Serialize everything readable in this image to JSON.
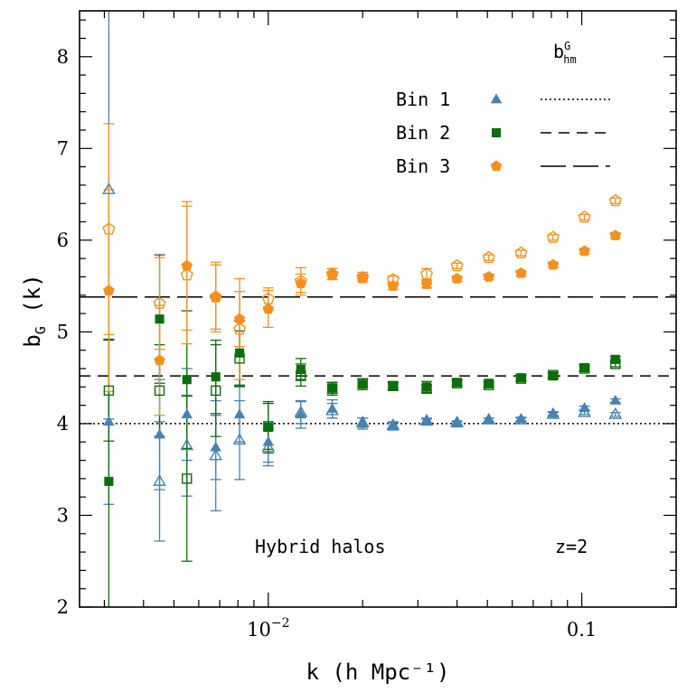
{
  "chart_data": {
    "type": "scatter",
    "xscale": "log",
    "xlim": [
      0.0025,
      0.2
    ],
    "ylim": [
      2,
      8.5
    ],
    "xlabel": "k (h Mpc⁻¹)",
    "ylabel": {
      "main": "b",
      "sub": "G",
      "tail": " (k)"
    },
    "x_tick_labels": [
      {
        "x": 0.01,
        "base": "10",
        "exp": "−2"
      },
      {
        "x": 0.1,
        "base": "0.1",
        "exp": ""
      }
    ],
    "y_ticks": [
      2,
      3,
      4,
      5,
      6,
      7,
      8
    ],
    "annotations": {
      "left": "Hybrid halos",
      "right": "z=2"
    },
    "legend": {
      "position": "top-right",
      "header": {
        "main": "b",
        "sup": "G",
        "sub": "hm"
      },
      "entries": [
        {
          "label": "Bin 1",
          "marker": "triangle",
          "line": "dotted"
        },
        {
          "label": "Bin 2",
          "marker": "square",
          "line": "dashed"
        },
        {
          "label": "Bin 3",
          "marker": "pentagon",
          "line": "long-dashed"
        }
      ]
    },
    "reference_lines": [
      {
        "series": "Bin 1",
        "y": 4.0,
        "style": "dotted"
      },
      {
        "series": "Bin 2",
        "y": 4.52,
        "style": "dashed"
      },
      {
        "series": "Bin 3",
        "y": 5.38,
        "style": "long-dashed"
      }
    ],
    "series": [
      {
        "name": "Bin 1",
        "color": "#4682b4",
        "marker": "triangle",
        "filled": [
          {
            "x": 0.0031,
            "y": 4.02,
            "err": 0.9
          },
          {
            "x": 0.0045,
            "y": 3.88,
            "err": 0.6
          },
          {
            "x": 0.0055,
            "y": 4.1,
            "err": 0.5
          },
          {
            "x": 0.0068,
            "y": 3.74,
            "err": 0.35
          },
          {
            "x": 0.0081,
            "y": 4.1,
            "err": 0.3
          },
          {
            "x": 0.01,
            "y": 3.8,
            "err": 0.22
          },
          {
            "x": 0.0127,
            "y": 4.1,
            "err": 0.15
          },
          {
            "x": 0.016,
            "y": 4.16,
            "err": 0.1
          },
          {
            "x": 0.02,
            "y": 4.0,
            "err": 0.06
          },
          {
            "x": 0.025,
            "y": 3.97,
            "err": 0.04
          },
          {
            "x": 0.032,
            "y": 4.02,
            "err": 0.03
          },
          {
            "x": 0.04,
            "y": 4.0,
            "err": 0.02
          },
          {
            "x": 0.0505,
            "y": 4.04,
            "err": 0.02
          },
          {
            "x": 0.064,
            "y": 4.05,
            "err": 0.02
          },
          {
            "x": 0.081,
            "y": 4.11,
            "err": 0.02
          },
          {
            "x": 0.102,
            "y": 4.17,
            "err": 0.02
          },
          {
            "x": 0.128,
            "y": 4.25,
            "err": 0.02
          }
        ],
        "open": [
          {
            "x": 0.0031,
            "y": 6.55,
            "err": 2.5
          },
          {
            "x": 0.0045,
            "y": 3.37,
            "err": 0.65
          },
          {
            "x": 0.0055,
            "y": 3.76,
            "err": 0.55
          },
          {
            "x": 0.0068,
            "y": 3.65,
            "err": 0.6
          },
          {
            "x": 0.0081,
            "y": 3.82,
            "err": 0.43
          },
          {
            "x": 0.01,
            "y": 3.74,
            "err": 0.2
          },
          {
            "x": 0.0127,
            "y": 4.12,
            "err": 0.12
          },
          {
            "x": 0.016,
            "y": 4.14,
            "err": 0.08
          },
          {
            "x": 0.02,
            "y": 4.01,
            "err": 0.05
          },
          {
            "x": 0.025,
            "y": 3.98,
            "err": 0.04
          },
          {
            "x": 0.032,
            "y": 4.03,
            "err": 0.03
          },
          {
            "x": 0.04,
            "y": 4.01,
            "err": 0.02
          },
          {
            "x": 0.0505,
            "y": 4.04,
            "err": 0.02
          },
          {
            "x": 0.064,
            "y": 4.04,
            "err": 0.02
          },
          {
            "x": 0.081,
            "y": 4.1,
            "err": 0.02
          },
          {
            "x": 0.102,
            "y": 4.12,
            "err": 0.02
          },
          {
            "x": 0.128,
            "y": 4.1,
            "err": 0.02
          }
        ]
      },
      {
        "name": "Bin 2",
        "color": "#0a6e0a",
        "marker": "square",
        "filled": [
          {
            "x": 0.0031,
            "y": 3.37,
            "err": 1.55
          },
          {
            "x": 0.0045,
            "y": 5.14,
            "err": 0.7
          },
          {
            "x": 0.0055,
            "y": 4.48,
            "err": 0.75
          },
          {
            "x": 0.0068,
            "y": 4.51,
            "err": 0.4
          },
          {
            "x": 0.0081,
            "y": 4.77,
            "err": 0.35
          },
          {
            "x": 0.01,
            "y": 3.96,
            "err": 0.28
          },
          {
            "x": 0.0127,
            "y": 4.59,
            "err": 0.12
          },
          {
            "x": 0.016,
            "y": 4.39,
            "err": 0.06
          },
          {
            "x": 0.02,
            "y": 4.43,
            "err": 0.06
          },
          {
            "x": 0.025,
            "y": 4.41,
            "err": 0.04
          },
          {
            "x": 0.032,
            "y": 4.4,
            "err": 0.06
          },
          {
            "x": 0.04,
            "y": 4.45,
            "err": 0.04
          },
          {
            "x": 0.0505,
            "y": 4.44,
            "err": 0.03
          },
          {
            "x": 0.064,
            "y": 4.5,
            "err": 0.03
          },
          {
            "x": 0.081,
            "y": 4.52,
            "err": 0.03
          },
          {
            "x": 0.102,
            "y": 4.61,
            "err": 0.03
          },
          {
            "x": 0.128,
            "y": 4.7,
            "err": 0.03
          }
        ],
        "open": [
          {
            "x": 0.0031,
            "y": 4.36,
            "err": 0.55
          },
          {
            "x": 0.0045,
            "y": 4.36,
            "err": 0.5
          },
          {
            "x": 0.0055,
            "y": 3.4,
            "err": 0.9
          },
          {
            "x": 0.0068,
            "y": 4.36,
            "err": 0.5
          },
          {
            "x": 0.0081,
            "y": 4.71,
            "err": 0.3
          },
          {
            "x": 0.01,
            "y": 3.97,
            "err": 0.25
          },
          {
            "x": 0.0127,
            "y": 4.53,
            "err": 0.12
          },
          {
            "x": 0.016,
            "y": 4.38,
            "err": 0.07
          },
          {
            "x": 0.02,
            "y": 4.44,
            "err": 0.05
          },
          {
            "x": 0.025,
            "y": 4.41,
            "err": 0.04
          },
          {
            "x": 0.032,
            "y": 4.38,
            "err": 0.04
          },
          {
            "x": 0.04,
            "y": 4.44,
            "err": 0.03
          },
          {
            "x": 0.0505,
            "y": 4.42,
            "err": 0.03
          },
          {
            "x": 0.064,
            "y": 4.49,
            "err": 0.03
          },
          {
            "x": 0.081,
            "y": 4.53,
            "err": 0.03
          },
          {
            "x": 0.102,
            "y": 4.6,
            "err": 0.03
          },
          {
            "x": 0.128,
            "y": 4.65,
            "err": 0.03
          }
        ]
      },
      {
        "name": "Bin 3",
        "color": "#f5901e",
        "marker": "pentagon",
        "filled": [
          {
            "x": 0.0031,
            "y": 5.45,
            "err": 1.1
          },
          {
            "x": 0.0045,
            "y": 4.69,
            "err": 0.6
          },
          {
            "x": 0.0055,
            "y": 5.72,
            "err": 0.7
          },
          {
            "x": 0.0068,
            "y": 5.38,
            "err": 0.38
          },
          {
            "x": 0.0081,
            "y": 5.14,
            "err": 0.3
          },
          {
            "x": 0.01,
            "y": 5.25,
            "err": 0.2
          },
          {
            "x": 0.0127,
            "y": 5.53,
            "err": 0.1
          },
          {
            "x": 0.016,
            "y": 5.63,
            "err": 0.06
          },
          {
            "x": 0.02,
            "y": 5.6,
            "err": 0.05
          },
          {
            "x": 0.025,
            "y": 5.5,
            "err": 0.04
          },
          {
            "x": 0.032,
            "y": 5.52,
            "err": 0.04
          },
          {
            "x": 0.04,
            "y": 5.58,
            "err": 0.03
          },
          {
            "x": 0.0505,
            "y": 5.6,
            "err": 0.03
          },
          {
            "x": 0.064,
            "y": 5.64,
            "err": 0.03
          },
          {
            "x": 0.081,
            "y": 5.73,
            "err": 0.03
          },
          {
            "x": 0.102,
            "y": 5.88,
            "err": 0.03
          },
          {
            "x": 0.128,
            "y": 6.05,
            "err": 0.03
          }
        ],
        "open": [
          {
            "x": 0.0031,
            "y": 6.12,
            "err": 1.15
          },
          {
            "x": 0.0045,
            "y": 5.31,
            "err": 0.5
          },
          {
            "x": 0.0055,
            "y": 5.62,
            "err": 0.75
          },
          {
            "x": 0.0068,
            "y": 5.38,
            "err": 0.35
          },
          {
            "x": 0.0081,
            "y": 5.03,
            "err": 0.55
          },
          {
            "x": 0.01,
            "y": 5.36,
            "err": 0.12
          },
          {
            "x": 0.0127,
            "y": 5.55,
            "err": 0.15
          },
          {
            "x": 0.016,
            "y": 5.63,
            "err": 0.06
          },
          {
            "x": 0.02,
            "y": 5.59,
            "err": 0.04
          },
          {
            "x": 0.025,
            "y": 5.57,
            "err": 0.04
          },
          {
            "x": 0.032,
            "y": 5.63,
            "err": 0.06
          },
          {
            "x": 0.04,
            "y": 5.72,
            "err": 0.03
          },
          {
            "x": 0.0505,
            "y": 5.81,
            "err": 0.03
          },
          {
            "x": 0.064,
            "y": 5.86,
            "err": 0.03
          },
          {
            "x": 0.081,
            "y": 6.03,
            "err": 0.03
          },
          {
            "x": 0.102,
            "y": 6.25,
            "err": 0.03
          },
          {
            "x": 0.128,
            "y": 6.43,
            "err": 0.03
          }
        ]
      }
    ]
  }
}
